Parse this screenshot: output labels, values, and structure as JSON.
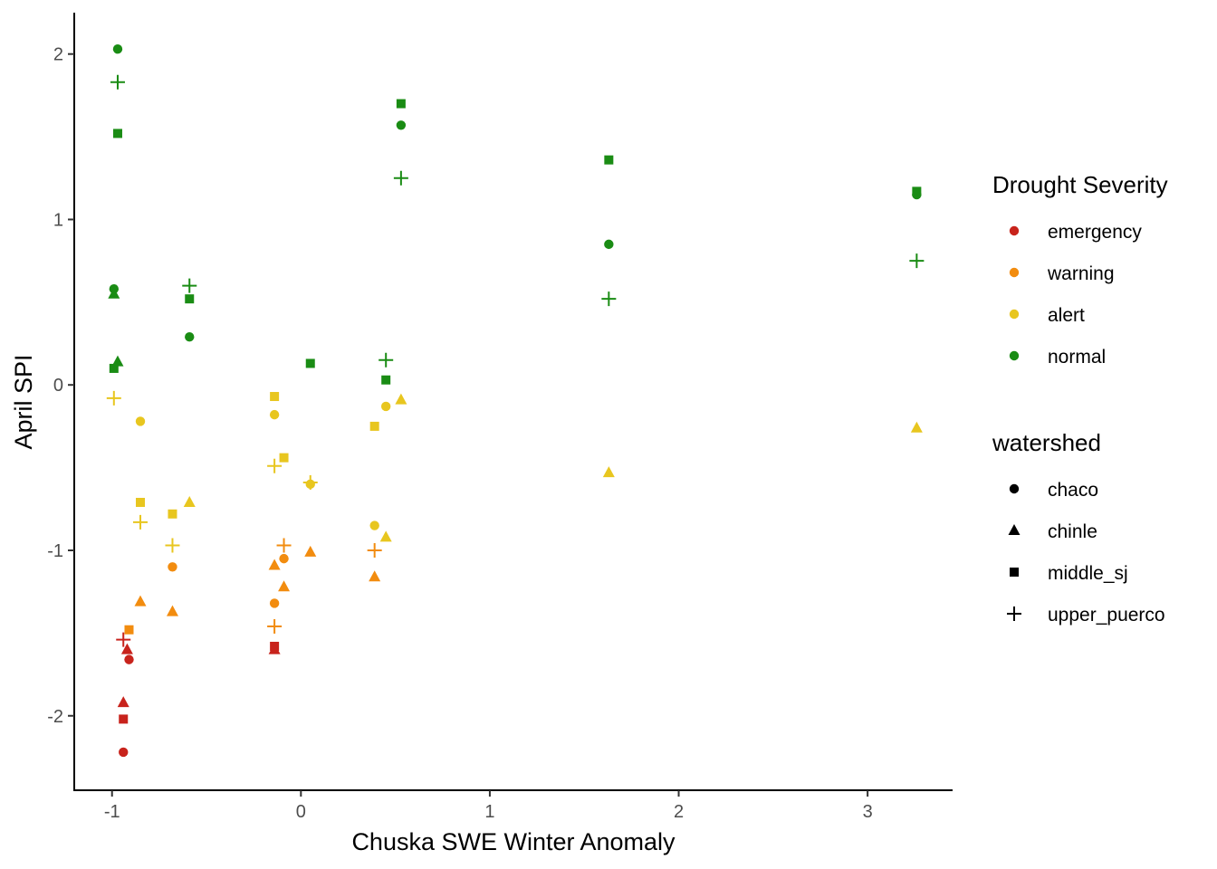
{
  "chart_data": {
    "type": "scatter",
    "xlabel": "Chuska SWE Winter Anomaly",
    "ylabel": "April SPI",
    "xlim": [
      -1.2,
      3.45
    ],
    "ylim": [
      -2.45,
      2.25
    ],
    "xticks": [
      -1,
      0,
      1,
      2,
      3
    ],
    "yticks": [
      -2,
      -1,
      0,
      1,
      2
    ],
    "xtick_labels": [
      "-1",
      "0",
      "1",
      "2",
      "3"
    ],
    "ytick_labels": [
      "-2",
      "-1",
      "0",
      "1",
      "2"
    ],
    "grid": false,
    "legend_position": "right",
    "colors": {
      "emergency": "#c8231c",
      "warning": "#f28c0f",
      "alert": "#e8c61f",
      "normal": "#1a8c14"
    },
    "legends": [
      {
        "title": "Drought Severity",
        "items": [
          {
            "label": "emergency",
            "color": "#c8231c",
            "shape": "circle"
          },
          {
            "label": "warning",
            "color": "#f28c0f",
            "shape": "circle"
          },
          {
            "label": "alert",
            "color": "#e8c61f",
            "shape": "circle"
          },
          {
            "label": "normal",
            "color": "#1a8c14",
            "shape": "circle"
          }
        ]
      },
      {
        "title": "watershed",
        "items": [
          {
            "label": "chaco",
            "color": "#000000",
            "shape": "circle"
          },
          {
            "label": "chinle",
            "color": "#000000",
            "shape": "triangle"
          },
          {
            "label": "middle_sj",
            "color": "#000000",
            "shape": "square"
          },
          {
            "label": "upper_puerco",
            "color": "#000000",
            "shape": "plus"
          }
        ]
      }
    ],
    "points": [
      {
        "x": -0.97,
        "y": 2.03,
        "severity": "normal",
        "watershed": "chaco"
      },
      {
        "x": -0.97,
        "y": 1.83,
        "severity": "normal",
        "watershed": "upper_puerco"
      },
      {
        "x": -0.97,
        "y": 1.52,
        "severity": "normal",
        "watershed": "middle_sj"
      },
      {
        "x": -0.99,
        "y": 0.58,
        "severity": "normal",
        "watershed": "chaco"
      },
      {
        "x": -0.99,
        "y": 0.55,
        "severity": "normal",
        "watershed": "chinle"
      },
      {
        "x": -0.97,
        "y": 0.14,
        "severity": "normal",
        "watershed": "chinle"
      },
      {
        "x": -0.99,
        "y": 0.1,
        "severity": "normal",
        "watershed": "middle_sj"
      },
      {
        "x": -0.99,
        "y": -0.08,
        "severity": "alert",
        "watershed": "upper_puerco"
      },
      {
        "x": -0.59,
        "y": 0.6,
        "severity": "normal",
        "watershed": "upper_puerco"
      },
      {
        "x": -0.59,
        "y": 0.52,
        "severity": "normal",
        "watershed": "middle_sj"
      },
      {
        "x": -0.59,
        "y": 0.29,
        "severity": "normal",
        "watershed": "chaco"
      },
      {
        "x": 0.05,
        "y": 0.13,
        "severity": "normal",
        "watershed": "middle_sj"
      },
      {
        "x": 0.53,
        "y": 1.7,
        "severity": "normal",
        "watershed": "middle_sj"
      },
      {
        "x": 0.53,
        "y": 1.57,
        "severity": "normal",
        "watershed": "chaco"
      },
      {
        "x": 0.53,
        "y": 1.25,
        "severity": "normal",
        "watershed": "upper_puerco"
      },
      {
        "x": 0.45,
        "y": 0.15,
        "severity": "normal",
        "watershed": "upper_puerco"
      },
      {
        "x": 0.45,
        "y": 0.03,
        "severity": "normal",
        "watershed": "middle_sj"
      },
      {
        "x": 1.63,
        "y": 1.36,
        "severity": "normal",
        "watershed": "middle_sj"
      },
      {
        "x": 1.63,
        "y": 0.85,
        "severity": "normal",
        "watershed": "chaco"
      },
      {
        "x": 1.63,
        "y": 0.52,
        "severity": "normal",
        "watershed": "upper_puerco"
      },
      {
        "x": 3.26,
        "y": 1.17,
        "severity": "normal",
        "watershed": "middle_sj"
      },
      {
        "x": 3.26,
        "y": 1.15,
        "severity": "normal",
        "watershed": "chaco"
      },
      {
        "x": 3.26,
        "y": 0.75,
        "severity": "normal",
        "watershed": "upper_puerco"
      },
      {
        "x": -0.85,
        "y": -0.22,
        "severity": "alert",
        "watershed": "chaco"
      },
      {
        "x": -0.85,
        "y": -0.71,
        "severity": "alert",
        "watershed": "middle_sj"
      },
      {
        "x": -0.85,
        "y": -0.83,
        "severity": "alert",
        "watershed": "upper_puerco"
      },
      {
        "x": -0.68,
        "y": -0.78,
        "severity": "alert",
        "watershed": "middle_sj"
      },
      {
        "x": -0.68,
        "y": -0.97,
        "severity": "alert",
        "watershed": "upper_puerco"
      },
      {
        "x": -0.59,
        "y": -0.71,
        "severity": "alert",
        "watershed": "chinle"
      },
      {
        "x": -0.14,
        "y": -0.07,
        "severity": "alert",
        "watershed": "middle_sj"
      },
      {
        "x": -0.14,
        "y": -0.18,
        "severity": "alert",
        "watershed": "chaco"
      },
      {
        "x": -0.14,
        "y": -0.49,
        "severity": "alert",
        "watershed": "upper_puerco"
      },
      {
        "x": -0.09,
        "y": -0.44,
        "severity": "alert",
        "watershed": "middle_sj"
      },
      {
        "x": 0.05,
        "y": -0.6,
        "severity": "alert",
        "watershed": "chaco"
      },
      {
        "x": 0.05,
        "y": -0.59,
        "severity": "alert",
        "watershed": "upper_puerco"
      },
      {
        "x": 0.39,
        "y": -0.25,
        "severity": "alert",
        "watershed": "middle_sj"
      },
      {
        "x": 0.39,
        "y": -0.85,
        "severity": "alert",
        "watershed": "chaco"
      },
      {
        "x": 0.45,
        "y": -0.92,
        "severity": "alert",
        "watershed": "chinle"
      },
      {
        "x": 0.45,
        "y": -0.13,
        "severity": "alert",
        "watershed": "chaco"
      },
      {
        "x": 0.53,
        "y": -0.09,
        "severity": "alert",
        "watershed": "chinle"
      },
      {
        "x": 1.63,
        "y": -0.53,
        "severity": "alert",
        "watershed": "chinle"
      },
      {
        "x": 3.26,
        "y": -0.26,
        "severity": "alert",
        "watershed": "chinle"
      },
      {
        "x": -0.68,
        "y": -1.1,
        "severity": "warning",
        "watershed": "chaco"
      },
      {
        "x": -0.68,
        "y": -1.37,
        "severity": "warning",
        "watershed": "chinle"
      },
      {
        "x": -0.85,
        "y": -1.31,
        "severity": "warning",
        "watershed": "chinle"
      },
      {
        "x": -0.91,
        "y": -1.48,
        "severity": "warning",
        "watershed": "middle_sj"
      },
      {
        "x": -0.14,
        "y": -1.09,
        "severity": "warning",
        "watershed": "chinle"
      },
      {
        "x": -0.14,
        "y": -1.32,
        "severity": "warning",
        "watershed": "chaco"
      },
      {
        "x": -0.14,
        "y": -1.46,
        "severity": "warning",
        "watershed": "upper_puerco"
      },
      {
        "x": -0.09,
        "y": -1.05,
        "severity": "warning",
        "watershed": "chaco"
      },
      {
        "x": -0.09,
        "y": -0.97,
        "severity": "warning",
        "watershed": "upper_puerco"
      },
      {
        "x": -0.09,
        "y": -1.22,
        "severity": "warning",
        "watershed": "chinle"
      },
      {
        "x": 0.05,
        "y": -1.01,
        "severity": "warning",
        "watershed": "chinle"
      },
      {
        "x": 0.39,
        "y": -1.0,
        "severity": "warning",
        "watershed": "upper_puerco"
      },
      {
        "x": 0.39,
        "y": -1.16,
        "severity": "warning",
        "watershed": "chinle"
      },
      {
        "x": -0.94,
        "y": -1.54,
        "severity": "emergency",
        "watershed": "upper_puerco"
      },
      {
        "x": -0.92,
        "y": -1.6,
        "severity": "emergency",
        "watershed": "chinle"
      },
      {
        "x": -0.91,
        "y": -1.66,
        "severity": "emergency",
        "watershed": "chaco"
      },
      {
        "x": -0.94,
        "y": -1.92,
        "severity": "emergency",
        "watershed": "chinle"
      },
      {
        "x": -0.94,
        "y": -2.02,
        "severity": "emergency",
        "watershed": "middle_sj"
      },
      {
        "x": -0.94,
        "y": -2.22,
        "severity": "emergency",
        "watershed": "chaco"
      },
      {
        "x": -0.14,
        "y": -1.58,
        "severity": "emergency",
        "watershed": "middle_sj"
      },
      {
        "x": -0.14,
        "y": -1.6,
        "severity": "emergency",
        "watershed": "chinle"
      }
    ]
  }
}
